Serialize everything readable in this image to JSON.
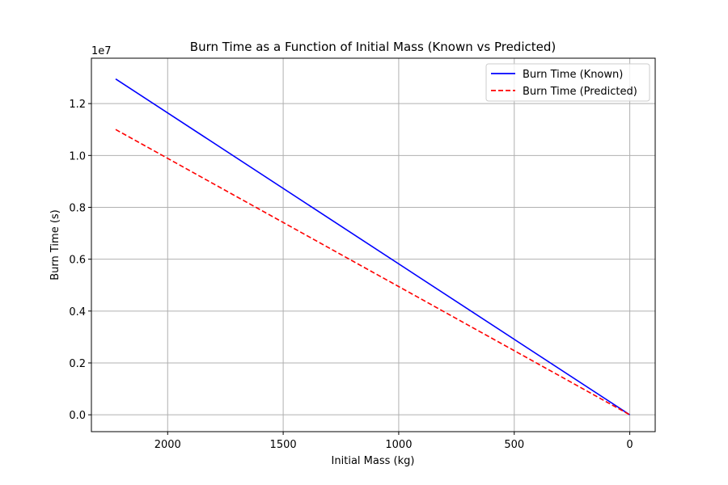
{
  "chart_data": {
    "type": "line",
    "title": "Burn Time as a Function of Initial Mass (Known vs Predicted)",
    "xlabel": "Initial Mass (kg)",
    "ylabel": "Burn Time (s)",
    "y_offset_label": "1e7",
    "y_scale": 10000000,
    "xlim": [
      2330,
      -110
    ],
    "ylim": [
      -0.065,
      1.375
    ],
    "x_inverted": true,
    "x_ticks": [
      2000,
      1500,
      1000,
      500,
      0
    ],
    "x_tick_labels": [
      "2000",
      "1500",
      "1000",
      "500",
      "0"
    ],
    "y_ticks": [
      0.0,
      0.2,
      0.4,
      0.6,
      0.8,
      1.0,
      1.2
    ],
    "y_tick_labels": [
      "0.0",
      "0.2",
      "0.4",
      "0.6",
      "0.8",
      "1.0",
      "1.2"
    ],
    "grid": true,
    "legend_position": "top-right",
    "series": [
      {
        "name": "Burn Time (Known)",
        "color": "#0000ff",
        "style": "solid",
        "x": [
          2225,
          0
        ],
        "y": [
          1.295,
          0.0
        ]
      },
      {
        "name": "Burn Time (Predicted)",
        "color": "#ff0000",
        "style": "dashed",
        "x": [
          2225,
          0
        ],
        "y": [
          1.1,
          0.0
        ]
      }
    ]
  }
}
